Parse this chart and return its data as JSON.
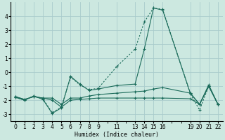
{
  "xlabel": "Humidex (Indice chaleur)",
  "bg_color": "#cce8e0",
  "grid_color": "#aacccc",
  "line_color": "#1a6b5a",
  "xlim": [
    -0.5,
    22.5
  ],
  "ylim": [
    -3.5,
    5.0
  ],
  "xticks": [
    0,
    1,
    2,
    3,
    4,
    5,
    6,
    7,
    8,
    9,
    11,
    13,
    14,
    15,
    16,
    19,
    20,
    21,
    22
  ],
  "yticks": [
    -3,
    -2,
    -1,
    0,
    1,
    2,
    3,
    4
  ],
  "series": [
    {
      "x": [
        0,
        1,
        2,
        3,
        4,
        5,
        6,
        7,
        8,
        9,
        11,
        13,
        14,
        15,
        16,
        19,
        20,
        21,
        22
      ],
      "y": [
        -1.8,
        -2.0,
        -1.7,
        -1.9,
        -2.9,
        -2.5,
        -0.35,
        -0.9,
        -1.25,
        -1.15,
        0.4,
        1.65,
        3.6,
        4.6,
        4.5,
        -1.55,
        -2.7,
        -1.0,
        -2.3
      ],
      "style": "dotted",
      "marker": true
    },
    {
      "x": [
        0,
        1,
        2,
        3,
        4,
        5,
        6,
        7,
        8,
        9,
        11,
        13,
        14,
        15,
        16,
        19,
        20,
        21,
        22
      ],
      "y": [
        -1.8,
        -2.0,
        -1.7,
        -1.95,
        -2.95,
        -2.55,
        -0.3,
        -0.85,
        -1.3,
        -1.2,
        -0.95,
        -0.85,
        1.65,
        4.6,
        4.45,
        -1.5,
        -2.3,
        -0.9,
        -2.3
      ],
      "style": "solid",
      "marker": true
    },
    {
      "x": [
        0,
        1,
        2,
        3,
        4,
        5,
        6,
        7,
        8,
        9,
        11,
        13,
        14,
        15,
        16,
        19,
        20,
        21,
        22
      ],
      "y": [
        -1.75,
        -1.95,
        -1.75,
        -1.85,
        -1.85,
        -2.3,
        -1.85,
        -1.85,
        -1.7,
        -1.6,
        -1.5,
        -1.4,
        -1.35,
        -1.2,
        -1.1,
        -1.5,
        -2.3,
        -1.0,
        -2.3
      ],
      "style": "solid",
      "marker": true
    },
    {
      "x": [
        0,
        1,
        2,
        3,
        4,
        5,
        6,
        7,
        8,
        9,
        11,
        13,
        14,
        15,
        16,
        19,
        20,
        21,
        22
      ],
      "y": [
        -1.75,
        -1.95,
        -1.75,
        -1.85,
        -2.0,
        -2.5,
        -2.0,
        -1.95,
        -1.9,
        -1.85,
        -1.85,
        -1.85,
        -1.85,
        -1.85,
        -1.85,
        -1.9,
        -2.3,
        -1.0,
        -2.3
      ],
      "style": "solid",
      "marker": true
    }
  ]
}
